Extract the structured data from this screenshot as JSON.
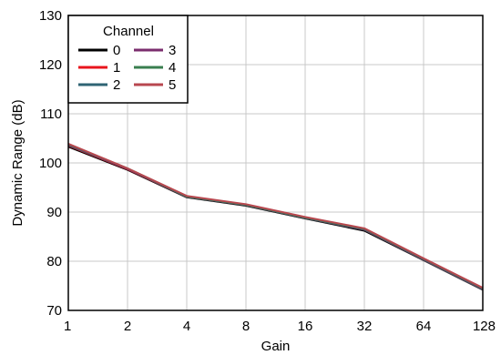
{
  "chart_data": {
    "type": "line",
    "xlabel": "Gain",
    "ylabel": "Dynamic Range (dB)",
    "x": [
      "1",
      "2",
      "4",
      "8",
      "16",
      "32",
      "64",
      "128"
    ],
    "ylim": [
      70,
      130
    ],
    "yticks": [
      "70",
      "80",
      "90",
      "100",
      "110",
      "120",
      "130"
    ],
    "grid": true,
    "legend": {
      "title": "Channel",
      "placement": "top-left"
    },
    "series": [
      {
        "name": "0",
        "color": "#000000",
        "values": [
          103.3,
          98.6,
          93.0,
          91.3,
          88.7,
          86.2,
          80.2,
          74.2
        ]
      },
      {
        "name": "1",
        "color": "#e8141c",
        "values": [
          103.5,
          98.7,
          93.1,
          91.4,
          88.8,
          86.4,
          80.3,
          74.3
        ]
      },
      {
        "name": "2",
        "color": "#2f6474",
        "values": [
          103.6,
          98.8,
          93.1,
          91.4,
          88.8,
          86.4,
          80.3,
          74.3
        ]
      },
      {
        "name": "3",
        "color": "#7b2d6e",
        "values": [
          103.7,
          98.8,
          93.2,
          91.5,
          88.9,
          86.5,
          80.4,
          74.4
        ]
      },
      {
        "name": "4",
        "color": "#3a7f4f",
        "values": [
          103.8,
          98.9,
          93.2,
          91.5,
          88.9,
          86.6,
          80.5,
          74.5
        ]
      },
      {
        "name": "5",
        "color": "#b8474f",
        "values": [
          103.9,
          98.9,
          93.3,
          91.6,
          89.0,
          86.7,
          80.6,
          74.6
        ]
      }
    ]
  }
}
